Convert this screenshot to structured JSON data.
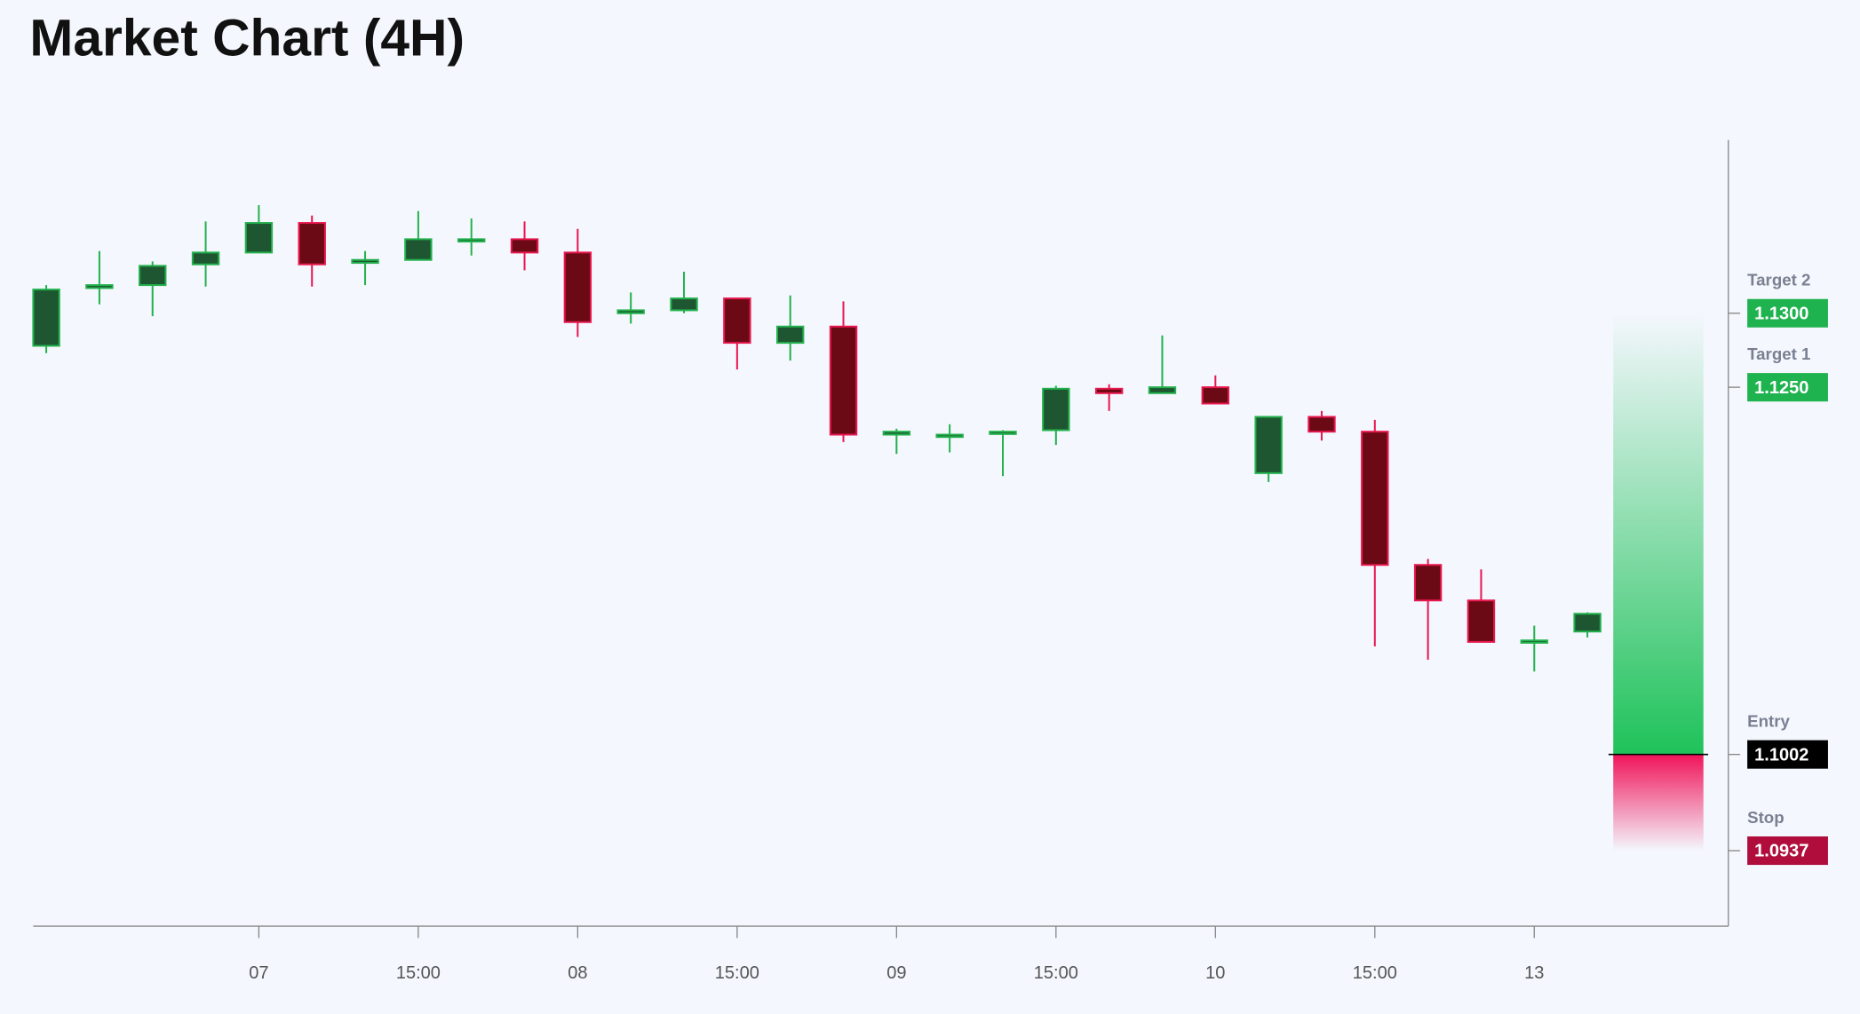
{
  "chart_data": {
    "type": "candlestick",
    "title": "Market Chart (4H)",
    "categories": [
      null,
      null,
      null,
      null,
      "07",
      null,
      null,
      "15:00",
      null,
      null,
      "08",
      null,
      null,
      "15:00",
      null,
      null,
      "09",
      null,
      null,
      "15:00",
      null,
      null,
      "10",
      null,
      null,
      "15:00",
      null,
      null,
      "13",
      null
    ],
    "open": [
      1.1278,
      1.1317,
      1.1319,
      1.1333,
      1.1341,
      1.1361,
      1.1334,
      1.1336,
      1.1349,
      1.135,
      1.1341,
      1.13,
      1.1302,
      1.131,
      1.128,
      1.1291,
      1.1218,
      1.1217,
      1.1219,
      1.1221,
      1.1249,
      1.1246,
      1.125,
      1.1192,
      1.123,
      1.122,
      1.113,
      1.1106,
      1.1078,
      1.1085
    ],
    "high": [
      1.1319,
      1.1342,
      1.1335,
      1.1362,
      1.1373,
      1.1366,
      1.1342,
      1.1369,
      1.1364,
      1.1362,
      1.1357,
      1.1314,
      1.1328,
      1.131,
      1.1312,
      1.1308,
      1.1222,
      1.1225,
      1.1221,
      1.1251,
      1.1252,
      1.1285,
      1.1258,
      1.123,
      1.1234,
      1.1228,
      1.1134,
      1.1127,
      1.1089,
      1.1098
    ],
    "low": [
      1.1273,
      1.1306,
      1.1298,
      1.1318,
      1.1341,
      1.1318,
      1.1319,
      1.1336,
      1.1339,
      1.1329,
      1.1284,
      1.1293,
      1.13,
      1.1262,
      1.1268,
      1.1213,
      1.1205,
      1.1206,
      1.119,
      1.1211,
      1.1234,
      1.1246,
      1.1239,
      1.1186,
      1.1214,
      1.1075,
      1.1066,
      1.1078,
      1.1058,
      1.1081
    ],
    "close": [
      1.1316,
      1.1319,
      1.1332,
      1.1341,
      1.1361,
      1.1333,
      1.1336,
      1.135,
      1.135,
      1.1341,
      1.1294,
      1.1302,
      1.131,
      1.128,
      1.1291,
      1.1218,
      1.122,
      1.1218,
      1.122,
      1.1249,
      1.1246,
      1.125,
      1.1239,
      1.123,
      1.122,
      1.113,
      1.1106,
      1.1078,
      1.1079,
      1.1097
    ],
    "up_color": "#22b14c",
    "down_color": "#e8174f",
    "up_fill": "#1e5631",
    "down_fill": "#6b0a14",
    "ylim": [
      1.0886,
      1.1417
    ],
    "levels": [
      {
        "name": "Target 2",
        "value": 1.13,
        "label": "1.1300",
        "color": "#1fb34f"
      },
      {
        "name": "Target 1",
        "value": 1.125,
        "label": "1.1250",
        "color": "#1fb34f"
      },
      {
        "name": "Entry",
        "value": 1.1002,
        "label": "1.1002",
        "color": "#000000"
      },
      {
        "name": "Stop",
        "value": 1.0937,
        "label": "1.0937",
        "color": "#b00d3c"
      }
    ]
  }
}
